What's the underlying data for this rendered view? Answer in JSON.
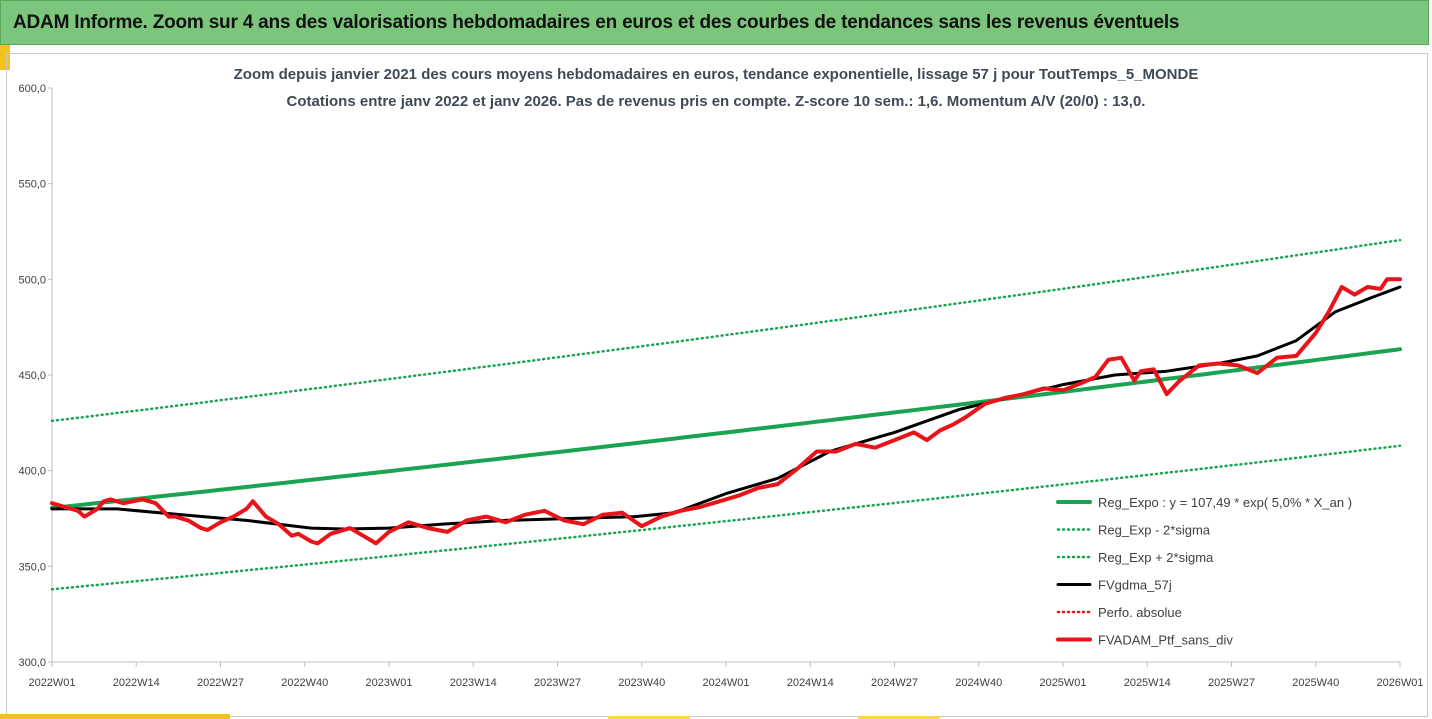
{
  "header": {
    "title": "ADAM Informe. Zoom sur 4 ans des valorisations hebdomadaires en euros et des courbes de tendances sans les revenus éventuels"
  },
  "colors": {
    "banner": "#7cc57c",
    "accent_yellow": "#f3c21b",
    "trend_green": "#1aa350",
    "smooth_black": "#000000",
    "price_red": "#e8141a"
  },
  "chart_data": {
    "type": "line",
    "title": "Zoom depuis janvier 2021 des cours moyens hebdomadaires  en euros, tendance exponentielle, lissage 57 j pour ToutTemps_5_MONDE",
    "subtitle": "Cotations entre janv 2022 et janv 2026. Pas de revenus pris en compte. Z-score 10 sem.: 1,6. Momentum A/V (20/0) : 13,0.",
    "xlabel": "",
    "ylabel": "",
    "ylim": [
      300,
      600
    ],
    "yticks": [
      "300,0",
      "350,0",
      "400,0",
      "450,0",
      "500,0",
      "550,0",
      "600,0"
    ],
    "x_range": [
      0,
      208
    ],
    "xticks": [
      {
        "week": 0,
        "label": "2022W01"
      },
      {
        "week": 13,
        "label": "2022W14"
      },
      {
        "week": 26,
        "label": "2022W27"
      },
      {
        "week": 39,
        "label": "2022W40"
      },
      {
        "week": 52,
        "label": "2023W01"
      },
      {
        "week": 65,
        "label": "2023W14"
      },
      {
        "week": 78,
        "label": "2023W27"
      },
      {
        "week": 91,
        "label": "2023W40"
      },
      {
        "week": 104,
        "label": "2024W01"
      },
      {
        "week": 117,
        "label": "2024W14"
      },
      {
        "week": 130,
        "label": "2024W27"
      },
      {
        "week": 143,
        "label": "2024W40"
      },
      {
        "week": 156,
        "label": "2025W01"
      },
      {
        "week": 169,
        "label": "2025W14"
      },
      {
        "week": 182,
        "label": "2025W27"
      },
      {
        "week": 195,
        "label": "2025W40"
      },
      {
        "week": 208,
        "label": "2026W01"
      }
    ],
    "series": [
      {
        "name": "Reg_Expo : y = 107,49 * exp( 5,0% *  X_an )",
        "style": "solid",
        "color": "#1aa350",
        "width": 4,
        "x": [
          0,
          208
        ],
        "y": [
          380.5,
          463.5
        ],
        "curve": "exponential"
      },
      {
        "name": "Reg_Exp - 2*sigma",
        "style": "dotted",
        "color": "#1aa350",
        "width": 3,
        "x": [
          0,
          208
        ],
        "y": [
          338.0,
          413.0
        ],
        "curve": "exponential"
      },
      {
        "name": "Reg_Exp + 2*sigma",
        "style": "dotted",
        "color": "#1aa350",
        "width": 3,
        "x": [
          0,
          208
        ],
        "y": [
          426.0,
          520.5
        ],
        "curve": "exponential"
      },
      {
        "name": "FVgdma_57j",
        "style": "solid",
        "color": "#000000",
        "width": 3,
        "x": [
          0,
          10,
          20,
          30,
          40,
          45,
          52,
          60,
          70,
          80,
          90,
          96,
          104,
          112,
          120,
          130,
          140,
          150,
          156,
          164,
          172,
          180,
          186,
          192,
          198,
          204,
          208
        ],
        "y": [
          380,
          380,
          377,
          374,
          370,
          369.5,
          370,
          372,
          374,
          375,
          376,
          378,
          388,
          396,
          410,
          420,
          432,
          440,
          445,
          450,
          452,
          456,
          460,
          468,
          483,
          491,
          496
        ]
      },
      {
        "name": "Perfo. absolue",
        "style": "dotted",
        "color": "#e8141a",
        "width": 3,
        "x": [],
        "y": []
      },
      {
        "name": "FVADAM_Ptf_sans_div",
        "style": "solid",
        "color": "#e8141a",
        "width": 4,
        "x": [
          0,
          2,
          4,
          5,
          7,
          8,
          9,
          11,
          14,
          16,
          18,
          19,
          21,
          23,
          24,
          26,
          28,
          30,
          31,
          33,
          35,
          37,
          38,
          40,
          41,
          43,
          46,
          48,
          50,
          52,
          55,
          58,
          61,
          64,
          67,
          70,
          73,
          76,
          79,
          82,
          85,
          88,
          91,
          94,
          97,
          100,
          103,
          106,
          109,
          112,
          115,
          118,
          121,
          124,
          127,
          130,
          133,
          135,
          137,
          139,
          141,
          144,
          147,
          150,
          153,
          156,
          159,
          161,
          163,
          165,
          167,
          168,
          170,
          172,
          174,
          177,
          180,
          183,
          186,
          189,
          192,
          195,
          197,
          199,
          201,
          203,
          205,
          206,
          208
        ],
        "y": [
          383,
          381,
          379,
          376,
          380,
          384,
          385,
          383,
          385,
          383,
          376,
          376,
          374,
          370,
          369,
          373,
          376,
          380,
          384,
          376,
          372,
          366,
          367,
          363,
          362,
          367,
          370,
          366,
          362,
          368,
          373,
          370,
          368,
          374,
          376,
          373,
          377,
          379,
          374,
          372,
          377,
          378,
          371,
          376,
          379,
          381,
          384,
          387,
          391,
          393,
          401,
          410,
          410,
          414,
          412,
          416,
          420,
          416,
          421,
          424,
          428,
          435,
          438,
          440,
          443,
          442,
          446,
          449,
          458,
          459,
          447,
          452,
          453,
          440,
          447,
          455,
          456,
          455,
          451,
          459,
          460,
          472,
          483,
          496,
          492,
          496,
          495,
          500,
          500
        ]
      }
    ],
    "legend_position": "bottom-right"
  }
}
